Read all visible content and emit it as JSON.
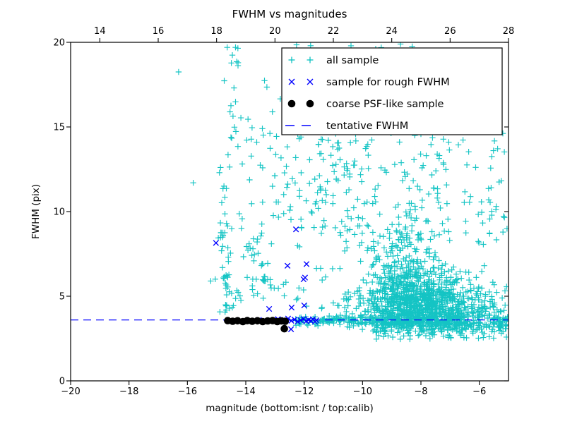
{
  "chart_data": {
    "type": "scatter",
    "title": "FWHM vs magnitudes",
    "xlabel": "magnitude (bottom:isnt / top:calib)",
    "ylabel": "FWHM (pix)",
    "xlim": [
      -20,
      -5
    ],
    "ylim": [
      0,
      20
    ],
    "x_ticks": [
      -20,
      -18,
      -16,
      -14,
      -12,
      -10,
      -8,
      -6
    ],
    "y_ticks": [
      0,
      5,
      10,
      15,
      20
    ],
    "top_axis": {
      "lim": [
        13,
        28
      ],
      "ticks": [
        14,
        16,
        18,
        20,
        22,
        24,
        26,
        28
      ]
    },
    "grid": false,
    "tentative_fwhm": 3.6,
    "colors": {
      "all_sample": "#00bfbf",
      "rough": "#0000ff",
      "coarse": "#000000",
      "line": "#0000ff",
      "frame": "#000000"
    },
    "legend": {
      "position": "upper right",
      "entries": [
        {
          "label": "all sample",
          "marker": "plus",
          "color": "#00bfbf"
        },
        {
          "label": "sample for rough FWHM",
          "marker": "x",
          "color": "#0000ff"
        },
        {
          "label": "coarse PSF-like sample",
          "marker": "dot",
          "color": "#000000"
        },
        {
          "label": "tentative FWHM",
          "marker": "dash",
          "color": "#0000ff"
        }
      ]
    },
    "seed": 42,
    "series": [
      {
        "name": "all sample",
        "marker": "plus",
        "color": "#00bfbf",
        "points": [
          [
            -16.3,
            18.25
          ],
          [
            -15.8,
            11.7
          ],
          [
            -15.2,
            5.9
          ],
          [
            -14.35,
            19.7
          ],
          [
            -14.27,
            19.65
          ],
          [
            -12.26,
            19.85
          ],
          [
            -11.78,
            19.8
          ],
          [
            -8.7,
            19.9
          ],
          [
            -8.3,
            19.75
          ]
        ],
        "clusters": [
          {
            "n": 26,
            "x": [
              "norm",
              -14.62,
              0.13
            ],
            "y": [
              "uni",
              4.0,
              6.4
            ]
          },
          {
            "n": 30,
            "x": [
              "norm",
              -14.68,
              0.15
            ],
            "y": [
              "uni",
              6.4,
              13.4
            ]
          },
          {
            "n": 14,
            "x": [
              "norm",
              -14.4,
              0.18
            ],
            "y": [
              "uni",
              13.4,
              19.8
            ]
          },
          {
            "n": 20,
            "x": [
              "norm",
              -13.65,
              0.22
            ],
            "y": [
              "uni",
              6.8,
              8.8
            ]
          },
          {
            "n": 26,
            "x": [
              "uni",
              -14.3,
              -12.6
            ],
            "y": [
              "uni",
              4.6,
              6.2
            ]
          },
          {
            "n": 26,
            "x": [
              "uni",
              -14.3,
              -12.5
            ],
            "y": [
              "uni",
              8.8,
              15.2
            ]
          },
          {
            "n": 10,
            "x": [
              "uni",
              -14.6,
              -12.8
            ],
            "y": [
              "uni",
              14.8,
              18.0
            ]
          },
          {
            "n": 70,
            "x": [
              "uni",
              -12.6,
              -10.2
            ],
            "y": [
              "uni",
              3.9,
              14.8
            ]
          },
          {
            "n": 480,
            "x": [
              "norm",
              -8.45,
              0.75
            ],
            "y": [
              "halfnorm",
              3.4,
              3.2,
              16.5
            ]
          },
          {
            "n": 24,
            "x": [
              "norm",
              -8.4,
              0.9
            ],
            "y": [
              "uni",
              14.5,
              19.9
            ]
          },
          {
            "n": 780,
            "x": [
              "normclip",
              -7.8,
              1.15,
              -10.8,
              -5.02
            ],
            "y": [
              "normclip",
              4.3,
              1.0,
              2.9,
              7.2
            ]
          },
          {
            "n": 110,
            "x": [
              "uni",
              -12.3,
              -9.6
            ],
            "y": [
              "norm",
              3.58,
              0.14
            ]
          },
          {
            "n": 300,
            "x": [
              "uni",
              -9.6,
              -4.95
            ],
            "y": [
              "norm",
              3.5,
              0.28
            ]
          },
          {
            "n": 55,
            "x": [
              "uni",
              -9.6,
              -5.05
            ],
            "y": [
              "uni",
              2.45,
              3.1
            ]
          },
          {
            "n": 150,
            "x": [
              "uni",
              -11.0,
              -5.05
            ],
            "y": [
              "uni",
              8.0,
              14.8
            ]
          },
          {
            "n": 30,
            "x": [
              "uni",
              -13.0,
              -11.0
            ],
            "y": [
              "uni",
              9.0,
              14.8
            ]
          }
        ]
      },
      {
        "name": "sample for rough FWHM",
        "marker": "x",
        "color": "#0000ff",
        "points": [
          [
            -15.02,
            8.15
          ],
          [
            -13.82,
            3.55
          ],
          [
            -13.55,
            3.6
          ],
          [
            -13.3,
            3.52
          ],
          [
            -13.2,
            4.25
          ],
          [
            -13.05,
            3.58
          ],
          [
            -12.9,
            3.65
          ],
          [
            -12.78,
            3.5
          ],
          [
            -12.66,
            3.6
          ],
          [
            -12.57,
            6.8
          ],
          [
            -12.55,
            3.68
          ],
          [
            -12.45,
            3.05
          ],
          [
            -12.44,
            3.55
          ],
          [
            -12.43,
            4.33
          ],
          [
            -12.33,
            3.62
          ],
          [
            -12.28,
            8.95
          ],
          [
            -12.22,
            3.5
          ],
          [
            -12.12,
            3.58
          ],
          [
            -12.02,
            3.66
          ],
          [
            -12.02,
            6.0
          ],
          [
            -12.0,
            4.46
          ],
          [
            -11.97,
            6.1
          ],
          [
            -11.93,
            3.52
          ],
          [
            -11.92,
            6.9
          ],
          [
            -11.85,
            3.6
          ],
          [
            -11.77,
            3.55
          ],
          [
            -11.7,
            3.64
          ],
          [
            -11.63,
            3.5
          ],
          [
            -11.58,
            3.58
          ]
        ]
      },
      {
        "name": "coarse PSF-like sample",
        "marker": "dot",
        "color": "#000000",
        "points": [
          [
            -14.62,
            3.56
          ],
          [
            -14.45,
            3.52
          ],
          [
            -14.28,
            3.55
          ],
          [
            -14.1,
            3.5
          ],
          [
            -13.95,
            3.56
          ],
          [
            -13.78,
            3.52
          ],
          [
            -13.6,
            3.55
          ],
          [
            -13.42,
            3.5
          ],
          [
            -13.25,
            3.54
          ],
          [
            -13.08,
            3.56
          ],
          [
            -12.92,
            3.5
          ],
          [
            -12.78,
            3.54
          ],
          [
            -12.65,
            3.52
          ],
          [
            -12.68,
            3.08
          ]
        ]
      },
      {
        "name": "tentative FWHM",
        "marker": "dashed-line",
        "color": "#0000ff",
        "y": 3.6
      }
    ]
  }
}
